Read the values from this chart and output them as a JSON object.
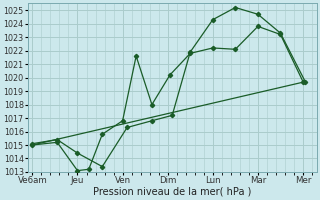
{
  "background_color": "#cce8ec",
  "grid_color": "#aacccc",
  "line_color": "#1a5c28",
  "xlabel": "Pression niveau de la mer( hPa )",
  "ylim": [
    1013,
    1025.5
  ],
  "yticks": [
    1013,
    1014,
    1015,
    1016,
    1017,
    1018,
    1019,
    1020,
    1021,
    1022,
    1023,
    1024,
    1025
  ],
  "xtick_labels": [
    "Ve6am",
    "Jeu",
    "Ven",
    "Dim",
    "Lun",
    "Mar",
    "Mer"
  ],
  "xtick_positions": [
    0,
    1,
    2,
    3,
    4,
    5,
    6
  ],
  "xlim": [
    -0.1,
    6.3
  ],
  "series1_x": [
    0,
    0.55,
    1.0,
    1.25,
    1.55,
    2.0,
    2.3,
    2.65,
    3.05,
    3.5,
    4.0,
    4.5,
    5.0,
    5.5,
    6.0
  ],
  "series1_y": [
    1015.0,
    1015.2,
    1013.1,
    1013.2,
    1015.8,
    1016.8,
    1021.6,
    1018.0,
    1020.2,
    1021.8,
    1022.2,
    1022.1,
    1023.8,
    1023.2,
    1019.7
  ],
  "series2_x": [
    0,
    0.55,
    1.0,
    1.55,
    2.1,
    2.65,
    3.1,
    3.5,
    4.0,
    4.5,
    5.0,
    5.5,
    6.05
  ],
  "series2_y": [
    1015.1,
    1015.4,
    1014.4,
    1013.4,
    1016.3,
    1016.8,
    1017.2,
    1021.9,
    1024.3,
    1025.2,
    1024.7,
    1023.3,
    1019.7
  ],
  "series3_x": [
    0,
    6.05
  ],
  "series3_y": [
    1015.0,
    1019.7
  ],
  "marker_style": "D",
  "marker_size": 2.2,
  "line_width": 0.9,
  "xlabel_fontsize": 7.0,
  "ytick_fontsize": 5.8,
  "xtick_fontsize": 6.2
}
